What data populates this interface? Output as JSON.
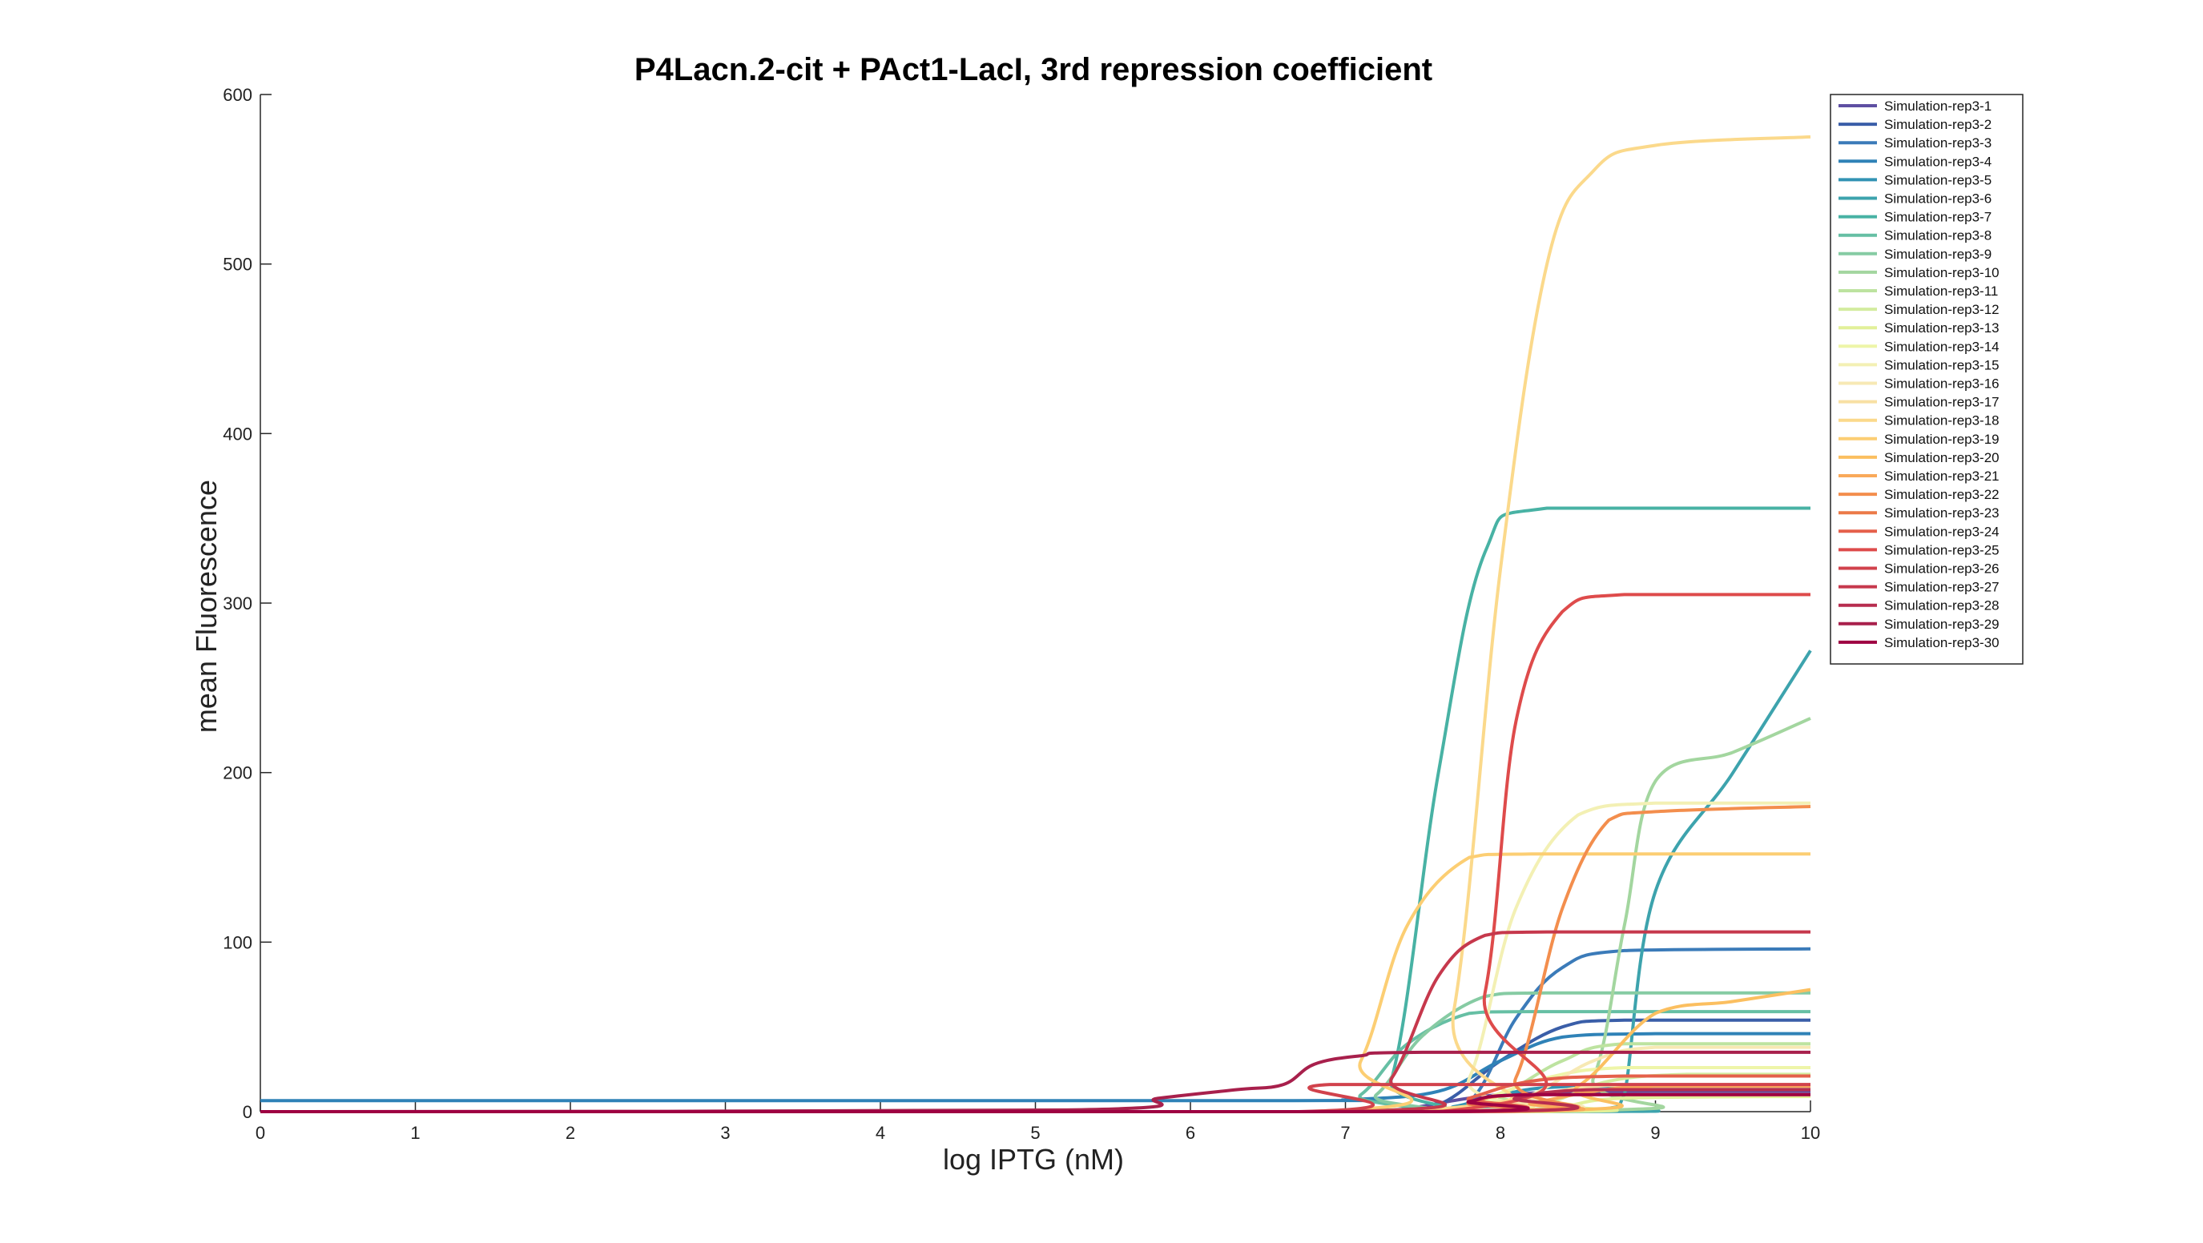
{
  "chart_data": {
    "type": "line",
    "title": "P4Lacn.2-cit + PAct1-LacI, 3rd repression coefficient",
    "xlabel": "log IPTG (nM)",
    "ylabel": "mean Fluorescence",
    "xlim": [
      0,
      10
    ],
    "ylim": [
      0,
      600
    ],
    "xticks": [
      0,
      1,
      2,
      3,
      4,
      5,
      6,
      7,
      8,
      9,
      10
    ],
    "yticks": [
      0,
      100,
      200,
      300,
      400,
      500,
      600
    ],
    "grid": false,
    "legend_position": "top-right",
    "series": [
      {
        "name": "Simulation-rep3-1",
        "color": "#5e4fa2",
        "points": [
          [
            0,
            0
          ],
          [
            6.9,
            0
          ],
          [
            7.3,
            0.5
          ],
          [
            7.8,
            8
          ],
          [
            8.2,
            11
          ],
          [
            9,
            12
          ],
          [
            10,
            12
          ]
        ]
      },
      {
        "name": "Simulation-rep3-2",
        "color": "#3a5ea8",
        "points": [
          [
            0,
            0
          ],
          [
            7.2,
            0
          ],
          [
            7.6,
            4
          ],
          [
            8.0,
            30
          ],
          [
            8.4,
            50
          ],
          [
            8.8,
            54
          ],
          [
            10,
            54
          ]
        ]
      },
      {
        "name": "Simulation-rep3-3",
        "color": "#3b7bb9",
        "points": [
          [
            0,
            0
          ],
          [
            7.4,
            0
          ],
          [
            7.8,
            6
          ],
          [
            8.1,
            55
          ],
          [
            8.4,
            85
          ],
          [
            8.8,
            95
          ],
          [
            10,
            96
          ]
        ]
      },
      {
        "name": "Simulation-rep3-4",
        "color": "#2f82b7",
        "points": [
          [
            0,
            6.5
          ],
          [
            6.6,
            6.5
          ],
          [
            7.0,
            7
          ],
          [
            7.6,
            12
          ],
          [
            8.0,
            30
          ],
          [
            8.4,
            44
          ],
          [
            9,
            46
          ],
          [
            10,
            46
          ]
        ]
      },
      {
        "name": "Simulation-rep3-5",
        "color": "#3293b4",
        "points": [
          [
            0,
            0
          ],
          [
            7.3,
            0
          ],
          [
            7.7,
            3
          ],
          [
            8.0,
            10
          ],
          [
            8.5,
            15
          ],
          [
            10,
            15
          ]
        ]
      },
      {
        "name": "Simulation-rep3-6",
        "color": "#3da3ad",
        "points": [
          [
            0,
            0
          ],
          [
            8.2,
            0
          ],
          [
            8.7,
            2
          ],
          [
            8.8,
            10
          ],
          [
            9.0,
            130
          ],
          [
            9.5,
            200
          ],
          [
            10,
            272
          ]
        ]
      },
      {
        "name": "Simulation-rep3-7",
        "color": "#48b2a4",
        "points": [
          [
            0,
            0
          ],
          [
            7.0,
            0
          ],
          [
            7.3,
            20
          ],
          [
            7.6,
            200
          ],
          [
            7.9,
            330
          ],
          [
            8.3,
            356
          ],
          [
            10,
            356
          ]
        ]
      },
      {
        "name": "Simulation-rep3-8",
        "color": "#66bfa4",
        "points": [
          [
            0,
            0
          ],
          [
            6.8,
            0
          ],
          [
            7.1,
            10
          ],
          [
            7.4,
            40
          ],
          [
            7.8,
            58
          ],
          [
            8.2,
            59
          ],
          [
            10,
            59
          ]
        ]
      },
      {
        "name": "Simulation-rep3-9",
        "color": "#86cba3",
        "points": [
          [
            0,
            0
          ],
          [
            6.9,
            0
          ],
          [
            7.2,
            10
          ],
          [
            7.5,
            45
          ],
          [
            7.9,
            68
          ],
          [
            8.3,
            70
          ],
          [
            10,
            70
          ]
        ]
      },
      {
        "name": "Simulation-rep3-10",
        "color": "#a3d69f",
        "points": [
          [
            0,
            0
          ],
          [
            8.3,
            0
          ],
          [
            8.6,
            20
          ],
          [
            8.8,
            110
          ],
          [
            9.0,
            195
          ],
          [
            9.5,
            212
          ],
          [
            10,
            232
          ]
        ]
      },
      {
        "name": "Simulation-rep3-11",
        "color": "#bde3a0",
        "points": [
          [
            0,
            0
          ],
          [
            7.6,
            0
          ],
          [
            8.0,
            10
          ],
          [
            8.4,
            30
          ],
          [
            8.8,
            40
          ],
          [
            10,
            40
          ]
        ]
      },
      {
        "name": "Simulation-rep3-12",
        "color": "#d3ec9f",
        "points": [
          [
            0,
            0
          ],
          [
            7.9,
            0
          ],
          [
            8.3,
            5
          ],
          [
            8.7,
            18
          ],
          [
            9.2,
            22
          ],
          [
            10,
            22
          ]
        ]
      },
      {
        "name": "Simulation-rep3-13",
        "color": "#e2f099",
        "points": [
          [
            0,
            0
          ],
          [
            8.0,
            0
          ],
          [
            8.4,
            3
          ],
          [
            8.8,
            8
          ],
          [
            10,
            9
          ]
        ]
      },
      {
        "name": "Simulation-rep3-14",
        "color": "#eef5a8",
        "points": [
          [
            0,
            0
          ],
          [
            7.5,
            0
          ],
          [
            7.9,
            8
          ],
          [
            8.3,
            20
          ],
          [
            8.8,
            26
          ],
          [
            10,
            26
          ]
        ]
      },
      {
        "name": "Simulation-rep3-15",
        "color": "#f3f0b4",
        "points": [
          [
            0,
            0
          ],
          [
            7.5,
            0
          ],
          [
            7.8,
            20
          ],
          [
            8.1,
            120
          ],
          [
            8.5,
            175
          ],
          [
            9,
            182
          ],
          [
            10,
            182
          ]
        ]
      },
      {
        "name": "Simulation-rep3-16",
        "color": "#f7e9b4",
        "points": [
          [
            0,
            0
          ],
          [
            7.8,
            0
          ],
          [
            8.2,
            10
          ],
          [
            8.6,
            30
          ],
          [
            9.0,
            38
          ],
          [
            10,
            38
          ]
        ]
      },
      {
        "name": "Simulation-rep3-17",
        "color": "#f8e0a4",
        "points": [
          [
            0,
            0
          ],
          [
            7.7,
            0
          ],
          [
            8.1,
            6
          ],
          [
            8.5,
            14
          ],
          [
            9,
            16
          ],
          [
            10,
            16
          ]
        ]
      },
      {
        "name": "Simulation-rep3-18",
        "color": "#fbd98b",
        "points": [
          [
            0,
            0
          ],
          [
            7.4,
            0
          ],
          [
            7.7,
            60
          ],
          [
            8.0,
            320
          ],
          [
            8.3,
            500
          ],
          [
            8.6,
            555
          ],
          [
            9.0,
            570
          ],
          [
            10,
            575
          ]
        ]
      },
      {
        "name": "Simulation-rep3-19",
        "color": "#fcce73",
        "points": [
          [
            0,
            0
          ],
          [
            6.8,
            0
          ],
          [
            7.1,
            30
          ],
          [
            7.4,
            110
          ],
          [
            7.8,
            150
          ],
          [
            8.2,
            152
          ],
          [
            10,
            152
          ]
        ]
      },
      {
        "name": "Simulation-rep3-20",
        "color": "#fbbf60",
        "points": [
          [
            0,
            0
          ],
          [
            8.0,
            0
          ],
          [
            8.5,
            15
          ],
          [
            9.0,
            58
          ],
          [
            9.5,
            65
          ],
          [
            10,
            72
          ]
        ]
      },
      {
        "name": "Simulation-rep3-21",
        "color": "#f9a95a",
        "points": [
          [
            0,
            0
          ],
          [
            7.8,
            0
          ],
          [
            8.2,
            5
          ],
          [
            8.6,
            12
          ],
          [
            9.0,
            15
          ],
          [
            10,
            15
          ]
        ]
      },
      {
        "name": "Simulation-rep3-22",
        "color": "#f38e4d",
        "points": [
          [
            0,
            0
          ],
          [
            7.8,
            0
          ],
          [
            8.1,
            20
          ],
          [
            8.4,
            120
          ],
          [
            8.7,
            172
          ],
          [
            9,
            177
          ],
          [
            10,
            180
          ]
        ]
      },
      {
        "name": "Simulation-rep3-23",
        "color": "#eb7a48",
        "points": [
          [
            0,
            0
          ],
          [
            7.5,
            0
          ],
          [
            7.8,
            5
          ],
          [
            8.2,
            10
          ],
          [
            10,
            10
          ]
        ]
      },
      {
        "name": "Simulation-rep3-24",
        "color": "#e5604b",
        "points": [
          [
            0,
            0
          ],
          [
            7.5,
            0
          ],
          [
            7.8,
            8
          ],
          [
            8.2,
            18
          ],
          [
            8.8,
            21
          ],
          [
            10,
            21
          ]
        ]
      },
      {
        "name": "Simulation-rep3-25",
        "color": "#de4b4b",
        "points": [
          [
            0,
            0
          ],
          [
            7.6,
            0
          ],
          [
            7.9,
            70
          ],
          [
            8.1,
            230
          ],
          [
            8.4,
            295
          ],
          [
            8.8,
            305
          ],
          [
            10,
            305
          ]
        ]
      },
      {
        "name": "Simulation-rep3-26",
        "color": "#d1424c",
        "points": [
          [
            0,
            0
          ],
          [
            6.7,
            0
          ],
          [
            6.9,
            16
          ],
          [
            10,
            16
          ]
        ]
      },
      {
        "name": "Simulation-rep3-27",
        "color": "#c6384c",
        "points": [
          [
            0,
            0
          ],
          [
            7.0,
            0
          ],
          [
            7.3,
            20
          ],
          [
            7.6,
            80
          ],
          [
            7.9,
            104
          ],
          [
            8.3,
            106
          ],
          [
            10,
            106
          ]
        ]
      },
      {
        "name": "Simulation-rep3-28",
        "color": "#b72d4f",
        "points": [
          [
            0,
            0
          ],
          [
            7.8,
            0
          ],
          [
            8.1,
            8
          ],
          [
            8.6,
            13
          ],
          [
            10,
            13
          ]
        ]
      },
      {
        "name": "Simulation-rep3-29",
        "color": "#a8204c",
        "points": [
          [
            0,
            0
          ],
          [
            5.2,
            1
          ],
          [
            5.8,
            8
          ],
          [
            6.3,
            13
          ],
          [
            6.6,
            16
          ],
          [
            6.8,
            28
          ],
          [
            7.1,
            33
          ],
          [
            7.5,
            35
          ],
          [
            10,
            35
          ]
        ]
      },
      {
        "name": "Simulation-rep3-30",
        "color": "#9e0142",
        "points": [
          [
            0,
            0
          ],
          [
            7.5,
            0
          ],
          [
            7.8,
            6
          ],
          [
            8.2,
            10
          ],
          [
            10,
            10
          ]
        ]
      }
    ]
  }
}
